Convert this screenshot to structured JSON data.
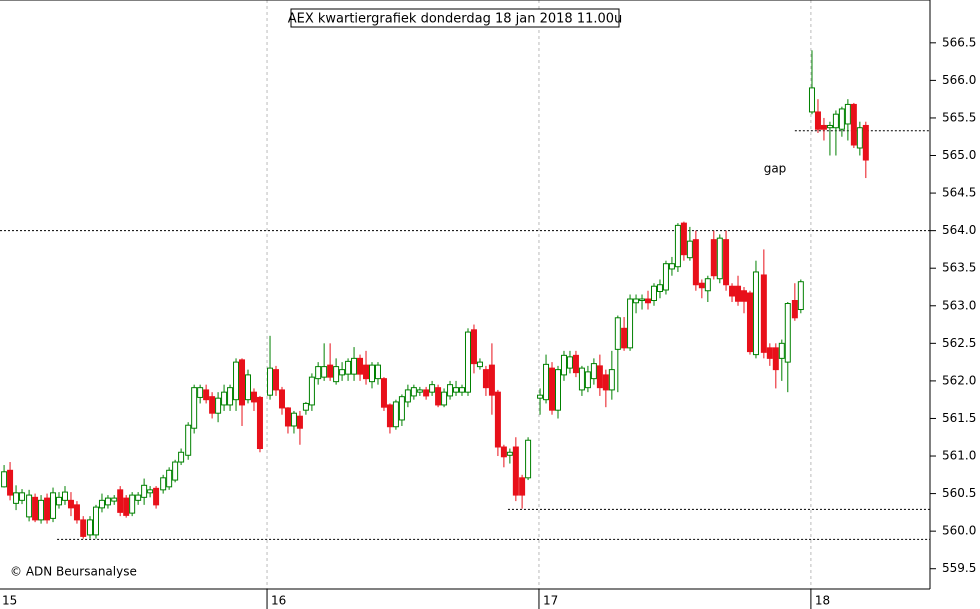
{
  "chart_data": {
    "type": "candlestick",
    "title": "AEX kwartiergrafiek donderdag 18 jan 2018 11.00u",
    "watermark": "© ADN Beursanalyse",
    "up_color": "#008000",
    "down_color": "#e8101a",
    "xlim": [
      15.018,
      18.438
    ],
    "xticks": [
      15,
      16,
      17,
      18
    ],
    "ylim": [
      559.23,
      567.07
    ],
    "yticks": [
      559.5,
      {
        "value": 560,
        "label": "560.0"
      },
      560.5,
      {
        "value": 561,
        "label": "561.0"
      },
      561.5,
      {
        "value": 562,
        "label": "562.0"
      },
      562.5,
      {
        "value": 563,
        "label": "563.0"
      },
      563.5,
      {
        "value": 564,
        "label": "564.0"
      },
      564.5,
      {
        "value": 565,
        "label": "565.0"
      },
      565.5,
      {
        "value": 566,
        "label": "566.0"
      },
      566.5
    ],
    "grid": true,
    "levels": [
      {
        "y": 564.0,
        "from": 15.018
      },
      {
        "y": 565.33,
        "from": 17.941
      },
      {
        "y": 560.29,
        "from": 16.886
      },
      {
        "y": 559.89,
        "from": 15.228
      }
    ],
    "annotations": [
      {
        "text": "gap",
        "x": 17.868,
        "y": 564.82
      }
    ],
    "x": [
      15.033,
      15.055,
      15.077,
      15.099,
      15.125,
      15.147,
      15.169,
      15.191,
      15.213,
      15.235,
      15.257,
      15.279,
      15.301,
      15.324,
      15.349,
      15.371,
      15.393,
      15.415,
      15.438,
      15.46,
      15.482,
      15.504,
      15.526,
      15.548,
      15.57,
      15.592,
      15.618,
      15.64,
      15.662,
      15.684,
      15.71,
      15.732,
      15.754,
      15.776,
      15.798,
      15.82,
      15.842,
      15.864,
      15.886,
      15.908,
      15.93,
      15.952,
      15.974,
      16.011,
      16.033,
      16.055,
      16.077,
      16.099,
      16.121,
      16.143,
      16.165,
      16.188,
      16.21,
      16.232,
      16.254,
      16.276,
      16.298,
      16.32,
      16.342,
      16.364,
      16.386,
      16.408,
      16.43,
      16.452,
      16.474,
      16.496,
      16.518,
      16.54,
      16.562,
      16.585,
      16.607,
      16.629,
      16.651,
      16.673,
      16.695,
      16.717,
      16.739,
      16.761,
      16.783,
      16.805,
      16.827,
      16.849,
      16.871,
      16.893,
      16.915,
      16.938,
      16.96,
      17.004,
      17.026,
      17.048,
      17.07,
      17.092,
      17.114,
      17.136,
      17.158,
      17.18,
      17.202,
      17.224,
      17.246,
      17.268,
      17.29,
      17.313,
      17.335,
      17.357,
      17.379,
      17.401,
      17.423,
      17.445,
      17.467,
      17.489,
      17.511,
      17.533,
      17.555,
      17.577,
      17.599,
      17.621,
      17.643,
      17.665,
      17.688,
      17.71,
      17.732,
      17.754,
      17.776,
      17.798,
      17.827,
      17.849,
      17.871,
      17.893,
      17.915,
      17.941,
      17.963,
      18.004,
      18.026,
      18.048,
      18.07,
      18.092,
      18.114,
      18.136,
      18.158,
      18.18,
      18.202
    ],
    "open": [
      560.59,
      560.81,
      560.37,
      560.41,
      560.19,
      560.45,
      560.15,
      560.44,
      560.17,
      560.35,
      560.41,
      560.41,
      560.35,
      560.15,
      559.95,
      559.95,
      560.31,
      560.35,
      560.4,
      560.55,
      560.44,
      560.24,
      560.41,
      560.45,
      560.51,
      560.57,
      560.55,
      560.59,
      560.68,
      560.92,
      561.01,
      561.37,
      561.78,
      561.88,
      561.79,
      561.57,
      561.68,
      561.68,
      561.75,
      562.28,
      561.75,
      561.85,
      561.78,
      561.81,
      562.15,
      561.88,
      561.64,
      561.4,
      561.53,
      561.61,
      561.68,
      562.03,
      562.05,
      562.21,
      561.99,
      562.08,
      562.09,
      562.09,
      562.3,
      562.21,
      561.99,
      562.03,
      562.03,
      561.68,
      561.39,
      561.48,
      561.72,
      561.8,
      561.85,
      561.88,
      561.85,
      561.91,
      561.68,
      561.8,
      561.85,
      561.85,
      561.85,
      562.68,
      562.19,
      562.15,
      562.21,
      561.85,
      561.12,
      561.01,
      561.12,
      560.71,
      560.71,
      561.77,
      561.75,
      562.17,
      561.61,
      562.08,
      562.17,
      562.34,
      561.88,
      561.91,
      562.03,
      562.2,
      562.08,
      561.88,
      562.42,
      562.7,
      562.44,
      563.04,
      563.07,
      563.09,
      563.07,
      563.19,
      563.21,
      563.49,
      563.52,
      564.1,
      563.64,
      563.88,
      563.3,
      563.2,
      563.88,
      563.36,
      563.88,
      563.26,
      563.26,
      563.2,
      563.17,
      562.35,
      563.41,
      562.44,
      562.44,
      562.3,
      562.25,
      563.07,
      562.95,
      565.58,
      565.58,
      565.4,
      565.37,
      565.37,
      565.35,
      565.42,
      565.68,
      565.1,
      565.4
    ],
    "high": [
      560.88,
      560.92,
      560.61,
      560.56,
      560.55,
      560.5,
      560.48,
      560.5,
      560.58,
      560.52,
      560.6,
      560.52,
      560.4,
      560.2,
      560.2,
      560.35,
      560.5,
      560.48,
      560.48,
      560.6,
      560.48,
      560.52,
      560.52,
      560.7,
      560.6,
      560.6,
      560.75,
      560.85,
      560.95,
      561.1,
      561.45,
      561.95,
      561.95,
      561.95,
      561.85,
      561.85,
      561.95,
      561.95,
      562.3,
      562.3,
      562.15,
      561.9,
      561.8,
      562.6,
      562.2,
      561.92,
      561.65,
      561.6,
      561.6,
      561.72,
      562.1,
      562.25,
      562.5,
      562.5,
      562.3,
      562.25,
      562.3,
      562.45,
      562.35,
      562.4,
      562.25,
      562.25,
      562.05,
      561.7,
      561.75,
      561.82,
      561.95,
      561.95,
      561.92,
      561.92,
      562.0,
      561.95,
      561.9,
      562.0,
      562.0,
      561.95,
      562.7,
      562.75,
      562.3,
      562.2,
      562.5,
      561.88,
      561.15,
      561.1,
      561.25,
      560.75,
      561.25,
      561.9,
      562.35,
      562.25,
      562.2,
      562.4,
      562.4,
      562.4,
      562.2,
      562.2,
      562.3,
      562.35,
      562.15,
      562.4,
      562.87,
      562.85,
      563.15,
      563.15,
      563.15,
      563.2,
      563.3,
      563.35,
      563.6,
      563.65,
      564.1,
      564.12,
      564.05,
      564.0,
      563.35,
      563.4,
      564.0,
      563.95,
      564.0,
      563.3,
      563.4,
      563.25,
      563.2,
      563.6,
      563.75,
      562.5,
      562.5,
      562.55,
      563.05,
      563.3,
      563.35,
      566.4,
      565.75,
      565.5,
      565.45,
      565.6,
      565.65,
      565.75,
      565.7,
      565.45,
      565.45
    ],
    "low": [
      560.58,
      560.41,
      560.28,
      560.36,
      560.13,
      560.12,
      560.1,
      560.1,
      560.12,
      560.3,
      560.35,
      560.2,
      560.1,
      559.9,
      559.9,
      559.9,
      560.25,
      560.3,
      560.35,
      560.2,
      560.18,
      560.2,
      560.35,
      560.35,
      560.45,
      560.3,
      560.5,
      560.55,
      560.65,
      560.88,
      560.95,
      561.3,
      561.7,
      561.7,
      561.5,
      561.45,
      561.6,
      561.6,
      561.6,
      561.4,
      561.7,
      561.6,
      561.05,
      561.75,
      561.8,
      561.55,
      561.3,
      561.3,
      561.15,
      561.55,
      561.6,
      561.95,
      562.0,
      562.0,
      561.95,
      562.0,
      562.0,
      562.0,
      562.0,
      561.95,
      561.9,
      561.95,
      561.6,
      561.3,
      561.35,
      561.4,
      561.65,
      561.75,
      561.8,
      561.75,
      561.8,
      561.65,
      561.65,
      561.75,
      561.8,
      561.8,
      561.8,
      562.1,
      562.15,
      561.8,
      561.55,
      561.0,
      560.85,
      560.9,
      560.4,
      560.3,
      560.68,
      561.55,
      561.7,
      561.55,
      561.5,
      562.0,
      562.1,
      562.05,
      561.8,
      561.85,
      561.95,
      561.8,
      561.65,
      561.75,
      561.85,
      562.4,
      562.4,
      562.9,
      562.95,
      562.95,
      563.0,
      563.1,
      563.15,
      563.4,
      563.45,
      563.6,
      563.6,
      563.2,
      563.1,
      563.05,
      563.35,
      563.3,
      563.2,
      563.05,
      563.0,
      562.9,
      562.35,
      562.3,
      562.3,
      562.2,
      561.9,
      562.0,
      561.85,
      562.8,
      562.9,
      565.55,
      565.3,
      565.2,
      565.0,
      565.0,
      565.25,
      565.2,
      565.1,
      565.0,
      564.7
    ],
    "close": [
      560.79,
      560.48,
      560.51,
      560.51,
      560.48,
      560.15,
      560.41,
      560.15,
      560.51,
      560.45,
      560.52,
      560.31,
      560.15,
      559.93,
      560.15,
      560.32,
      560.41,
      560.44,
      560.44,
      560.25,
      560.21,
      560.48,
      560.48,
      560.61,
      560.55,
      560.35,
      560.71,
      560.81,
      560.92,
      561.05,
      561.41,
      561.91,
      561.91,
      561.75,
      561.57,
      561.77,
      561.85,
      561.91,
      562.25,
      561.68,
      562.08,
      561.72,
      561.1,
      562.17,
      561.88,
      561.64,
      561.4,
      561.57,
      561.37,
      561.7,
      562.05,
      562.19,
      562.19,
      562.05,
      562.19,
      562.15,
      562.26,
      562.3,
      562.09,
      562.03,
      562.21,
      562.21,
      561.65,
      561.39,
      561.72,
      561.79,
      561.88,
      561.91,
      561.88,
      561.8,
      561.95,
      561.68,
      561.85,
      561.95,
      561.91,
      561.91,
      562.65,
      562.23,
      562.25,
      561.91,
      561.81,
      561.12,
      560.99,
      561.05,
      560.48,
      560.48,
      561.21,
      561.81,
      562.22,
      561.61,
      562.15,
      562.34,
      562.32,
      562.11,
      562.17,
      562.12,
      562.23,
      561.91,
      561.88,
      562.15,
      562.84,
      562.44,
      563.09,
      563.09,
      563.09,
      563.04,
      563.26,
      563.28,
      563.56,
      563.56,
      564.07,
      563.68,
      563.86,
      563.28,
      563.24,
      563.36,
      563.4,
      563.9,
      563.28,
      563.13,
      563.06,
      563.06,
      562.39,
      563.45,
      562.38,
      562.3,
      562.15,
      562.5,
      563.03,
      562.84,
      563.32,
      565.9,
      565.35,
      565.35,
      565.4,
      565.55,
      565.62,
      565.68,
      565.14,
      565.37,
      564.94
    ]
  }
}
